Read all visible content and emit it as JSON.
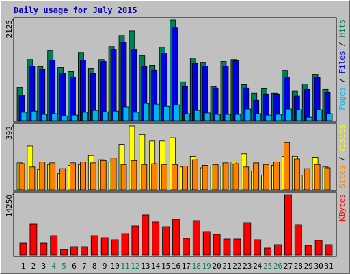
{
  "chart_data": {
    "type": "bar",
    "title": "Daily usage for July 2015",
    "categories": [
      "1",
      "2",
      "3",
      "4",
      "5",
      "6",
      "7",
      "8",
      "9",
      "10",
      "11",
      "12",
      "13",
      "14",
      "15",
      "16",
      "17",
      "18",
      "19",
      "20",
      "21",
      "22",
      "23",
      "24",
      "25",
      "26",
      "27",
      "28",
      "29",
      "30",
      "31"
    ],
    "category_colors": [
      "#000000",
      "#000000",
      "#000000",
      "#00805a",
      "#00805a",
      "#000000",
      "#000000",
      "#000000",
      "#000000",
      "#000000",
      "#00805a",
      "#00805a",
      "#000000",
      "#000000",
      "#000000",
      "#000000",
      "#000000",
      "#00805a",
      "#00805a",
      "#000000",
      "#000000",
      "#000000",
      "#000000",
      "#000000",
      "#00805a",
      "#00805a",
      "#000000",
      "#000000",
      "#000000",
      "#000000",
      "#000000"
    ],
    "legend_separator": " / ",
    "panels": [
      {
        "ylim": [
          0,
          2125
        ],
        "yticks": [
          2125
        ],
        "series": [
          {
            "name": "Hits",
            "color": "#00805a",
            "values": [
              700,
              1290,
              1135,
              1480,
              1120,
              1035,
              1435,
              1105,
              1290,
              1565,
              1795,
              1895,
              1365,
              1165,
              1550,
              2125,
              820,
              1320,
              1220,
              720,
              1250,
              1290,
              760,
              575,
              675,
              575,
              1060,
              620,
              775,
              975,
              660
            ]
          },
          {
            "name": "Files",
            "color": "#0000e0",
            "values": [
              535,
              1150,
              1080,
              1280,
              995,
              920,
              1280,
              995,
              1250,
              1495,
              1650,
              1510,
              1135,
              1065,
              1420,
              1955,
              720,
              1210,
              1150,
              690,
              1150,
              1265,
              690,
              430,
              560,
              560,
              920,
              520,
              660,
              905,
              590
            ]
          },
          {
            "name": "Pages",
            "color": "#00b4f0",
            "values": [
              175,
              200,
              130,
              145,
              100,
              115,
              175,
              215,
              185,
              200,
              290,
              175,
              360,
              345,
              300,
              330,
              145,
              215,
              160,
              130,
              130,
              130,
              245,
              145,
              115,
              130,
              245,
              230,
              70,
              230,
              145
            ]
          }
        ]
      },
      {
        "ylim": [
          0,
          392
        ],
        "yticks": [
          392
        ],
        "series": [
          {
            "name": "Visits",
            "color": "#ffff00",
            "values": [
              165,
              270,
              125,
              155,
              100,
              150,
              155,
              210,
              185,
              170,
              280,
              392,
              340,
              300,
              300,
              320,
              140,
              205,
              135,
              145,
              145,
              170,
              220,
              115,
              90,
              150,
              205,
              205,
              90,
              200,
              140
            ]
          },
          {
            "name": "Sites",
            "color": "#ff8000",
            "values": [
              160,
              140,
              170,
              165,
              130,
              165,
              170,
              165,
              180,
              195,
              155,
              180,
              155,
              160,
              155,
              155,
              145,
              185,
              150,
              155,
              165,
              160,
              140,
              165,
              155,
              170,
              290,
              190,
              130,
              155,
              135
            ]
          }
        ]
      },
      {
        "ylim": [
          0,
          14250
        ],
        "yticks": [
          14250
        ],
        "series": [
          {
            "name": "KBytes",
            "color": "#ff0000",
            "values": [
              2750,
              7290,
              2750,
              4535,
              1295,
              1945,
              1945,
              4535,
              4050,
              3565,
              5020,
              6800,
              9400,
              7775,
              6640,
              8425,
              3890,
              8100,
              5510,
              4860,
              3725,
              3725,
              7615,
              3565,
              1620,
              2430,
              14250,
              7130,
              2270,
              3405,
              2430
            ]
          }
        ]
      }
    ]
  }
}
